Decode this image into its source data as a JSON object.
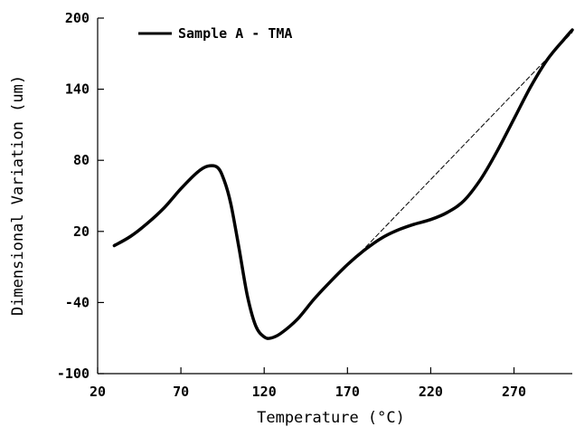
{
  "chart_data": {
    "type": "line",
    "title": "",
    "xlabel": "Temperature (°C)",
    "ylabel": "Dimensional Variation (um)",
    "xlim": [
      20,
      305
    ],
    "ylim": [
      -100,
      200
    ],
    "x_ticks": [
      20,
      70,
      120,
      170,
      220,
      270
    ],
    "y_ticks": [
      -100,
      -40,
      20,
      80,
      140,
      200
    ],
    "grid": false,
    "legend": "top-left",
    "series": [
      {
        "name": "Sample A - TMA",
        "style": "solid",
        "color": "#000000",
        "x": [
          30,
          40,
          50,
          60,
          70,
          80,
          86,
          92,
          96,
          100,
          105,
          110,
          115,
          120,
          124,
          130,
          140,
          150,
          160,
          170,
          180,
          190,
          200,
          210,
          220,
          230,
          240,
          250,
          260,
          270,
          280,
          290,
          300,
          305
        ],
        "y": [
          8,
          16,
          27,
          40,
          56,
          70,
          75,
          74,
          63,
          43,
          5,
          -35,
          -60,
          -69,
          -70,
          -66,
          -54,
          -37,
          -22,
          -8,
          4,
          14,
          21,
          26,
          30,
          36,
          46,
          64,
          88,
          115,
          142,
          165,
          182,
          190
        ]
      },
      {
        "name": "",
        "style": "dashed",
        "color": "#000000",
        "x": [
          175,
          305
        ],
        "y": [
          -2,
          188
        ]
      }
    ]
  }
}
